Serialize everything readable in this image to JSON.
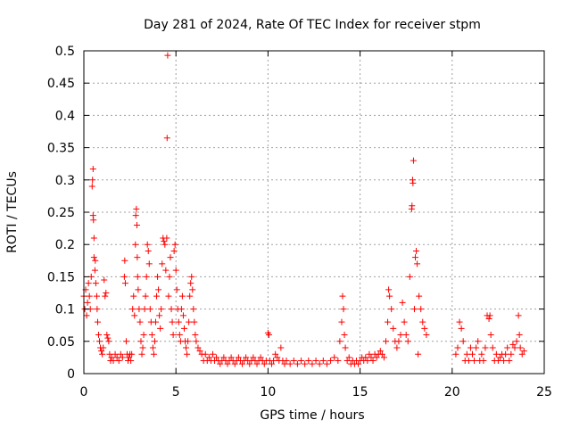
{
  "chart_data": {
    "type": "scatter",
    "title": "Day 281 of 2024, Rate Of TEC Index for receiver stpm",
    "xlabel": "GPS time / hours",
    "ylabel": "ROTI / TECUs",
    "xlim": [
      0,
      25
    ],
    "ylim": [
      0,
      0.5
    ],
    "xticks": [
      0,
      5,
      10,
      15,
      20,
      25
    ],
    "xtick_labels": [
      "0",
      "5",
      "10",
      "15",
      "20",
      "25"
    ],
    "yticks": [
      0,
      0.05,
      0.1,
      0.15,
      0.2,
      0.25,
      0.3,
      0.35,
      0.4,
      0.45,
      0.5
    ],
    "ytick_labels": [
      "0",
      "0.05",
      "0.1",
      "0.15",
      "0.2",
      "0.25",
      "0.3",
      "0.35",
      "0.4",
      "0.45",
      "0.5"
    ],
    "grid": true,
    "marker": "plus",
    "color": "#ff0000",
    "series": [
      {
        "points": [
          [
            0.0,
            0.12
          ],
          [
            0.05,
            0.1
          ],
          [
            0.1,
            0.13
          ],
          [
            0.15,
            0.09
          ],
          [
            0.2,
            0.11
          ],
          [
            0.25,
            0.14
          ],
          [
            0.3,
            0.12
          ],
          [
            0.35,
            0.1
          ],
          [
            0.4,
            0.15
          ],
          [
            0.45,
            0.29
          ],
          [
            0.47,
            0.3
          ],
          [
            0.5,
            0.317
          ],
          [
            0.5,
            0.245
          ],
          [
            0.52,
            0.238
          ],
          [
            0.55,
            0.21
          ],
          [
            0.55,
            0.18
          ],
          [
            0.6,
            0.16
          ],
          [
            0.62,
            0.175
          ],
          [
            0.65,
            0.14
          ],
          [
            0.7,
            0.12
          ],
          [
            0.72,
            0.1
          ],
          [
            0.75,
            0.08
          ],
          [
            0.8,
            0.06
          ],
          [
            0.85,
            0.05
          ],
          [
            0.9,
            0.04
          ],
          [
            0.95,
            0.035
          ],
          [
            1.0,
            0.03
          ],
          [
            1.05,
            0.04
          ],
          [
            1.1,
            0.145
          ],
          [
            1.15,
            0.12
          ],
          [
            1.2,
            0.125
          ],
          [
            1.25,
            0.06
          ],
          [
            1.3,
            0.055
          ],
          [
            1.35,
            0.05
          ],
          [
            1.4,
            0.03
          ],
          [
            1.45,
            0.02
          ],
          [
            1.5,
            0.025
          ],
          [
            1.6,
            0.02
          ],
          [
            1.7,
            0.03
          ],
          [
            1.8,
            0.025
          ],
          [
            1.9,
            0.02
          ],
          [
            2.0,
            0.03
          ],
          [
            2.1,
            0.025
          ],
          [
            2.2,
            0.15
          ],
          [
            2.22,
            0.175
          ],
          [
            2.25,
            0.14
          ],
          [
            2.3,
            0.05
          ],
          [
            2.35,
            0.03
          ],
          [
            2.4,
            0.02
          ],
          [
            2.45,
            0.025
          ],
          [
            2.5,
            0.03
          ],
          [
            2.55,
            0.02
          ],
          [
            2.6,
            0.03
          ],
          [
            2.65,
            0.1
          ],
          [
            2.7,
            0.12
          ],
          [
            2.75,
            0.09
          ],
          [
            2.8,
            0.2
          ],
          [
            2.82,
            0.245
          ],
          [
            2.85,
            0.255
          ],
          [
            2.88,
            0.23
          ],
          [
            2.9,
            0.18
          ],
          [
            2.92,
            0.15
          ],
          [
            2.95,
            0.13
          ],
          [
            3.0,
            0.1
          ],
          [
            3.05,
            0.08
          ],
          [
            3.1,
            0.05
          ],
          [
            3.15,
            0.03
          ],
          [
            3.2,
            0.04
          ],
          [
            3.25,
            0.06
          ],
          [
            3.3,
            0.1
          ],
          [
            3.35,
            0.12
          ],
          [
            3.4,
            0.15
          ],
          [
            3.45,
            0.2
          ],
          [
            3.5,
            0.19
          ],
          [
            3.55,
            0.17
          ],
          [
            3.6,
            0.1
          ],
          [
            3.65,
            0.08
          ],
          [
            3.7,
            0.06
          ],
          [
            3.75,
            0.04
          ],
          [
            3.8,
            0.03
          ],
          [
            3.85,
            0.05
          ],
          [
            3.9,
            0.08
          ],
          [
            3.95,
            0.12
          ],
          [
            4.0,
            0.15
          ],
          [
            4.05,
            0.13
          ],
          [
            4.1,
            0.09
          ],
          [
            4.15,
            0.07
          ],
          [
            4.2,
            0.1
          ],
          [
            4.25,
            0.17
          ],
          [
            4.3,
            0.21
          ],
          [
            4.35,
            0.205
          ],
          [
            4.4,
            0.2
          ],
          [
            4.45,
            0.16
          ],
          [
            4.5,
            0.21
          ],
          [
            4.52,
            0.365
          ],
          [
            4.55,
            0.493
          ],
          [
            4.6,
            0.12
          ],
          [
            4.65,
            0.15
          ],
          [
            4.7,
            0.18
          ],
          [
            4.75,
            0.1
          ],
          [
            4.8,
            0.08
          ],
          [
            4.85,
            0.06
          ],
          [
            4.9,
            0.19
          ],
          [
            4.95,
            0.2
          ],
          [
            5.0,
            0.16
          ],
          [
            5.05,
            0.13
          ],
          [
            5.1,
            0.1
          ],
          [
            5.15,
            0.08
          ],
          [
            5.2,
            0.06
          ],
          [
            5.25,
            0.05
          ],
          [
            5.3,
            0.1
          ],
          [
            5.35,
            0.12
          ],
          [
            5.4,
            0.09
          ],
          [
            5.45,
            0.07
          ],
          [
            5.5,
            0.05
          ],
          [
            5.55,
            0.04
          ],
          [
            5.6,
            0.03
          ],
          [
            5.65,
            0.05
          ],
          [
            5.7,
            0.08
          ],
          [
            5.75,
            0.12
          ],
          [
            5.8,
            0.14
          ],
          [
            5.85,
            0.15
          ],
          [
            5.9,
            0.13
          ],
          [
            5.95,
            0.1
          ],
          [
            6.0,
            0.08
          ],
          [
            6.05,
            0.06
          ],
          [
            6.1,
            0.05
          ],
          [
            6.2,
            0.04
          ],
          [
            6.3,
            0.035
          ],
          [
            6.4,
            0.03
          ],
          [
            6.5,
            0.02
          ],
          [
            6.6,
            0.03
          ],
          [
            6.7,
            0.02
          ],
          [
            6.8,
            0.025
          ],
          [
            6.9,
            0.02
          ],
          [
            7.0,
            0.03
          ],
          [
            7.1,
            0.02
          ],
          [
            7.2,
            0.025
          ],
          [
            7.3,
            0.02
          ],
          [
            7.4,
            0.015
          ],
          [
            7.5,
            0.02
          ],
          [
            7.6,
            0.025
          ],
          [
            7.7,
            0.02
          ],
          [
            7.8,
            0.015
          ],
          [
            7.9,
            0.02
          ],
          [
            8.0,
            0.025
          ],
          [
            8.1,
            0.02
          ],
          [
            8.2,
            0.015
          ],
          [
            8.3,
            0.02
          ],
          [
            8.4,
            0.025
          ],
          [
            8.5,
            0.02
          ],
          [
            8.6,
            0.015
          ],
          [
            8.7,
            0.02
          ],
          [
            8.8,
            0.025
          ],
          [
            8.9,
            0.02
          ],
          [
            9.0,
            0.015
          ],
          [
            9.1,
            0.02
          ],
          [
            9.2,
            0.025
          ],
          [
            9.3,
            0.02
          ],
          [
            9.4,
            0.015
          ],
          [
            9.5,
            0.02
          ],
          [
            9.6,
            0.025
          ],
          [
            9.7,
            0.02
          ],
          [
            9.8,
            0.015
          ],
          [
            9.9,
            0.02
          ],
          [
            10.0,
            0.063
          ],
          [
            10.05,
            0.06
          ],
          [
            10.1,
            0.02
          ],
          [
            10.2,
            0.015
          ],
          [
            10.3,
            0.02
          ],
          [
            10.4,
            0.03
          ],
          [
            10.5,
            0.025
          ],
          [
            10.6,
            0.02
          ],
          [
            10.7,
            0.04
          ],
          [
            10.8,
            0.02
          ],
          [
            10.9,
            0.015
          ],
          [
            11.0,
            0.02
          ],
          [
            11.2,
            0.015
          ],
          [
            11.4,
            0.02
          ],
          [
            11.6,
            0.015
          ],
          [
            11.8,
            0.02
          ],
          [
            12.0,
            0.015
          ],
          [
            12.2,
            0.02
          ],
          [
            12.4,
            0.015
          ],
          [
            12.6,
            0.02
          ],
          [
            12.8,
            0.015
          ],
          [
            13.0,
            0.02
          ],
          [
            13.2,
            0.015
          ],
          [
            13.4,
            0.02
          ],
          [
            13.6,
            0.025
          ],
          [
            13.8,
            0.02
          ],
          [
            13.9,
            0.05
          ],
          [
            14.0,
            0.08
          ],
          [
            14.05,
            0.12
          ],
          [
            14.1,
            0.1
          ],
          [
            14.15,
            0.06
          ],
          [
            14.2,
            0.04
          ],
          [
            14.3,
            0.02
          ],
          [
            14.4,
            0.025
          ],
          [
            14.5,
            0.015
          ],
          [
            14.6,
            0.02
          ],
          [
            14.7,
            0.015
          ],
          [
            14.8,
            0.02
          ],
          [
            14.9,
            0.015
          ],
          [
            15.0,
            0.02
          ],
          [
            15.1,
            0.025
          ],
          [
            15.2,
            0.02
          ],
          [
            15.3,
            0.025
          ],
          [
            15.4,
            0.02
          ],
          [
            15.5,
            0.03
          ],
          [
            15.6,
            0.025
          ],
          [
            15.7,
            0.02
          ],
          [
            15.8,
            0.03
          ],
          [
            15.9,
            0.025
          ],
          [
            16.0,
            0.03
          ],
          [
            16.1,
            0.035
          ],
          [
            16.2,
            0.03
          ],
          [
            16.3,
            0.025
          ],
          [
            16.4,
            0.05
          ],
          [
            16.5,
            0.08
          ],
          [
            16.55,
            0.13
          ],
          [
            16.6,
            0.12
          ],
          [
            16.7,
            0.1
          ],
          [
            16.8,
            0.07
          ],
          [
            16.9,
            0.05
          ],
          [
            17.0,
            0.04
          ],
          [
            17.1,
            0.05
          ],
          [
            17.2,
            0.06
          ],
          [
            17.3,
            0.11
          ],
          [
            17.4,
            0.08
          ],
          [
            17.5,
            0.06
          ],
          [
            17.6,
            0.05
          ],
          [
            17.7,
            0.15
          ],
          [
            17.8,
            0.255
          ],
          [
            17.82,
            0.26
          ],
          [
            17.85,
            0.3
          ],
          [
            17.87,
            0.295
          ],
          [
            17.9,
            0.33
          ],
          [
            17.95,
            0.1
          ],
          [
            18.0,
            0.18
          ],
          [
            18.05,
            0.19
          ],
          [
            18.1,
            0.17
          ],
          [
            18.15,
            0.03
          ],
          [
            18.2,
            0.12
          ],
          [
            18.3,
            0.1
          ],
          [
            18.4,
            0.08
          ],
          [
            18.5,
            0.07
          ],
          [
            18.6,
            0.06
          ],
          [
            20.2,
            0.03
          ],
          [
            20.3,
            0.04
          ],
          [
            20.4,
            0.08
          ],
          [
            20.5,
            0.07
          ],
          [
            20.6,
            0.05
          ],
          [
            20.7,
            0.02
          ],
          [
            20.8,
            0.03
          ],
          [
            20.9,
            0.02
          ],
          [
            21.0,
            0.04
          ],
          [
            21.1,
            0.03
          ],
          [
            21.2,
            0.02
          ],
          [
            21.3,
            0.04
          ],
          [
            21.4,
            0.05
          ],
          [
            21.5,
            0.02
          ],
          [
            21.6,
            0.03
          ],
          [
            21.7,
            0.02
          ],
          [
            21.8,
            0.04
          ],
          [
            21.9,
            0.09
          ],
          [
            22.0,
            0.085
          ],
          [
            22.05,
            0.09
          ],
          [
            22.1,
            0.06
          ],
          [
            22.2,
            0.04
          ],
          [
            22.3,
            0.02
          ],
          [
            22.4,
            0.03
          ],
          [
            22.5,
            0.02
          ],
          [
            22.6,
            0.025
          ],
          [
            22.7,
            0.03
          ],
          [
            22.8,
            0.02
          ],
          [
            22.9,
            0.03
          ],
          [
            23.0,
            0.04
          ],
          [
            23.1,
            0.02
          ],
          [
            23.2,
            0.03
          ],
          [
            23.3,
            0.045
          ],
          [
            23.4,
            0.04
          ],
          [
            23.5,
            0.05
          ],
          [
            23.6,
            0.09
          ],
          [
            23.65,
            0.06
          ],
          [
            23.7,
            0.04
          ],
          [
            23.8,
            0.03
          ],
          [
            23.9,
            0.035
          ]
        ]
      }
    ]
  }
}
